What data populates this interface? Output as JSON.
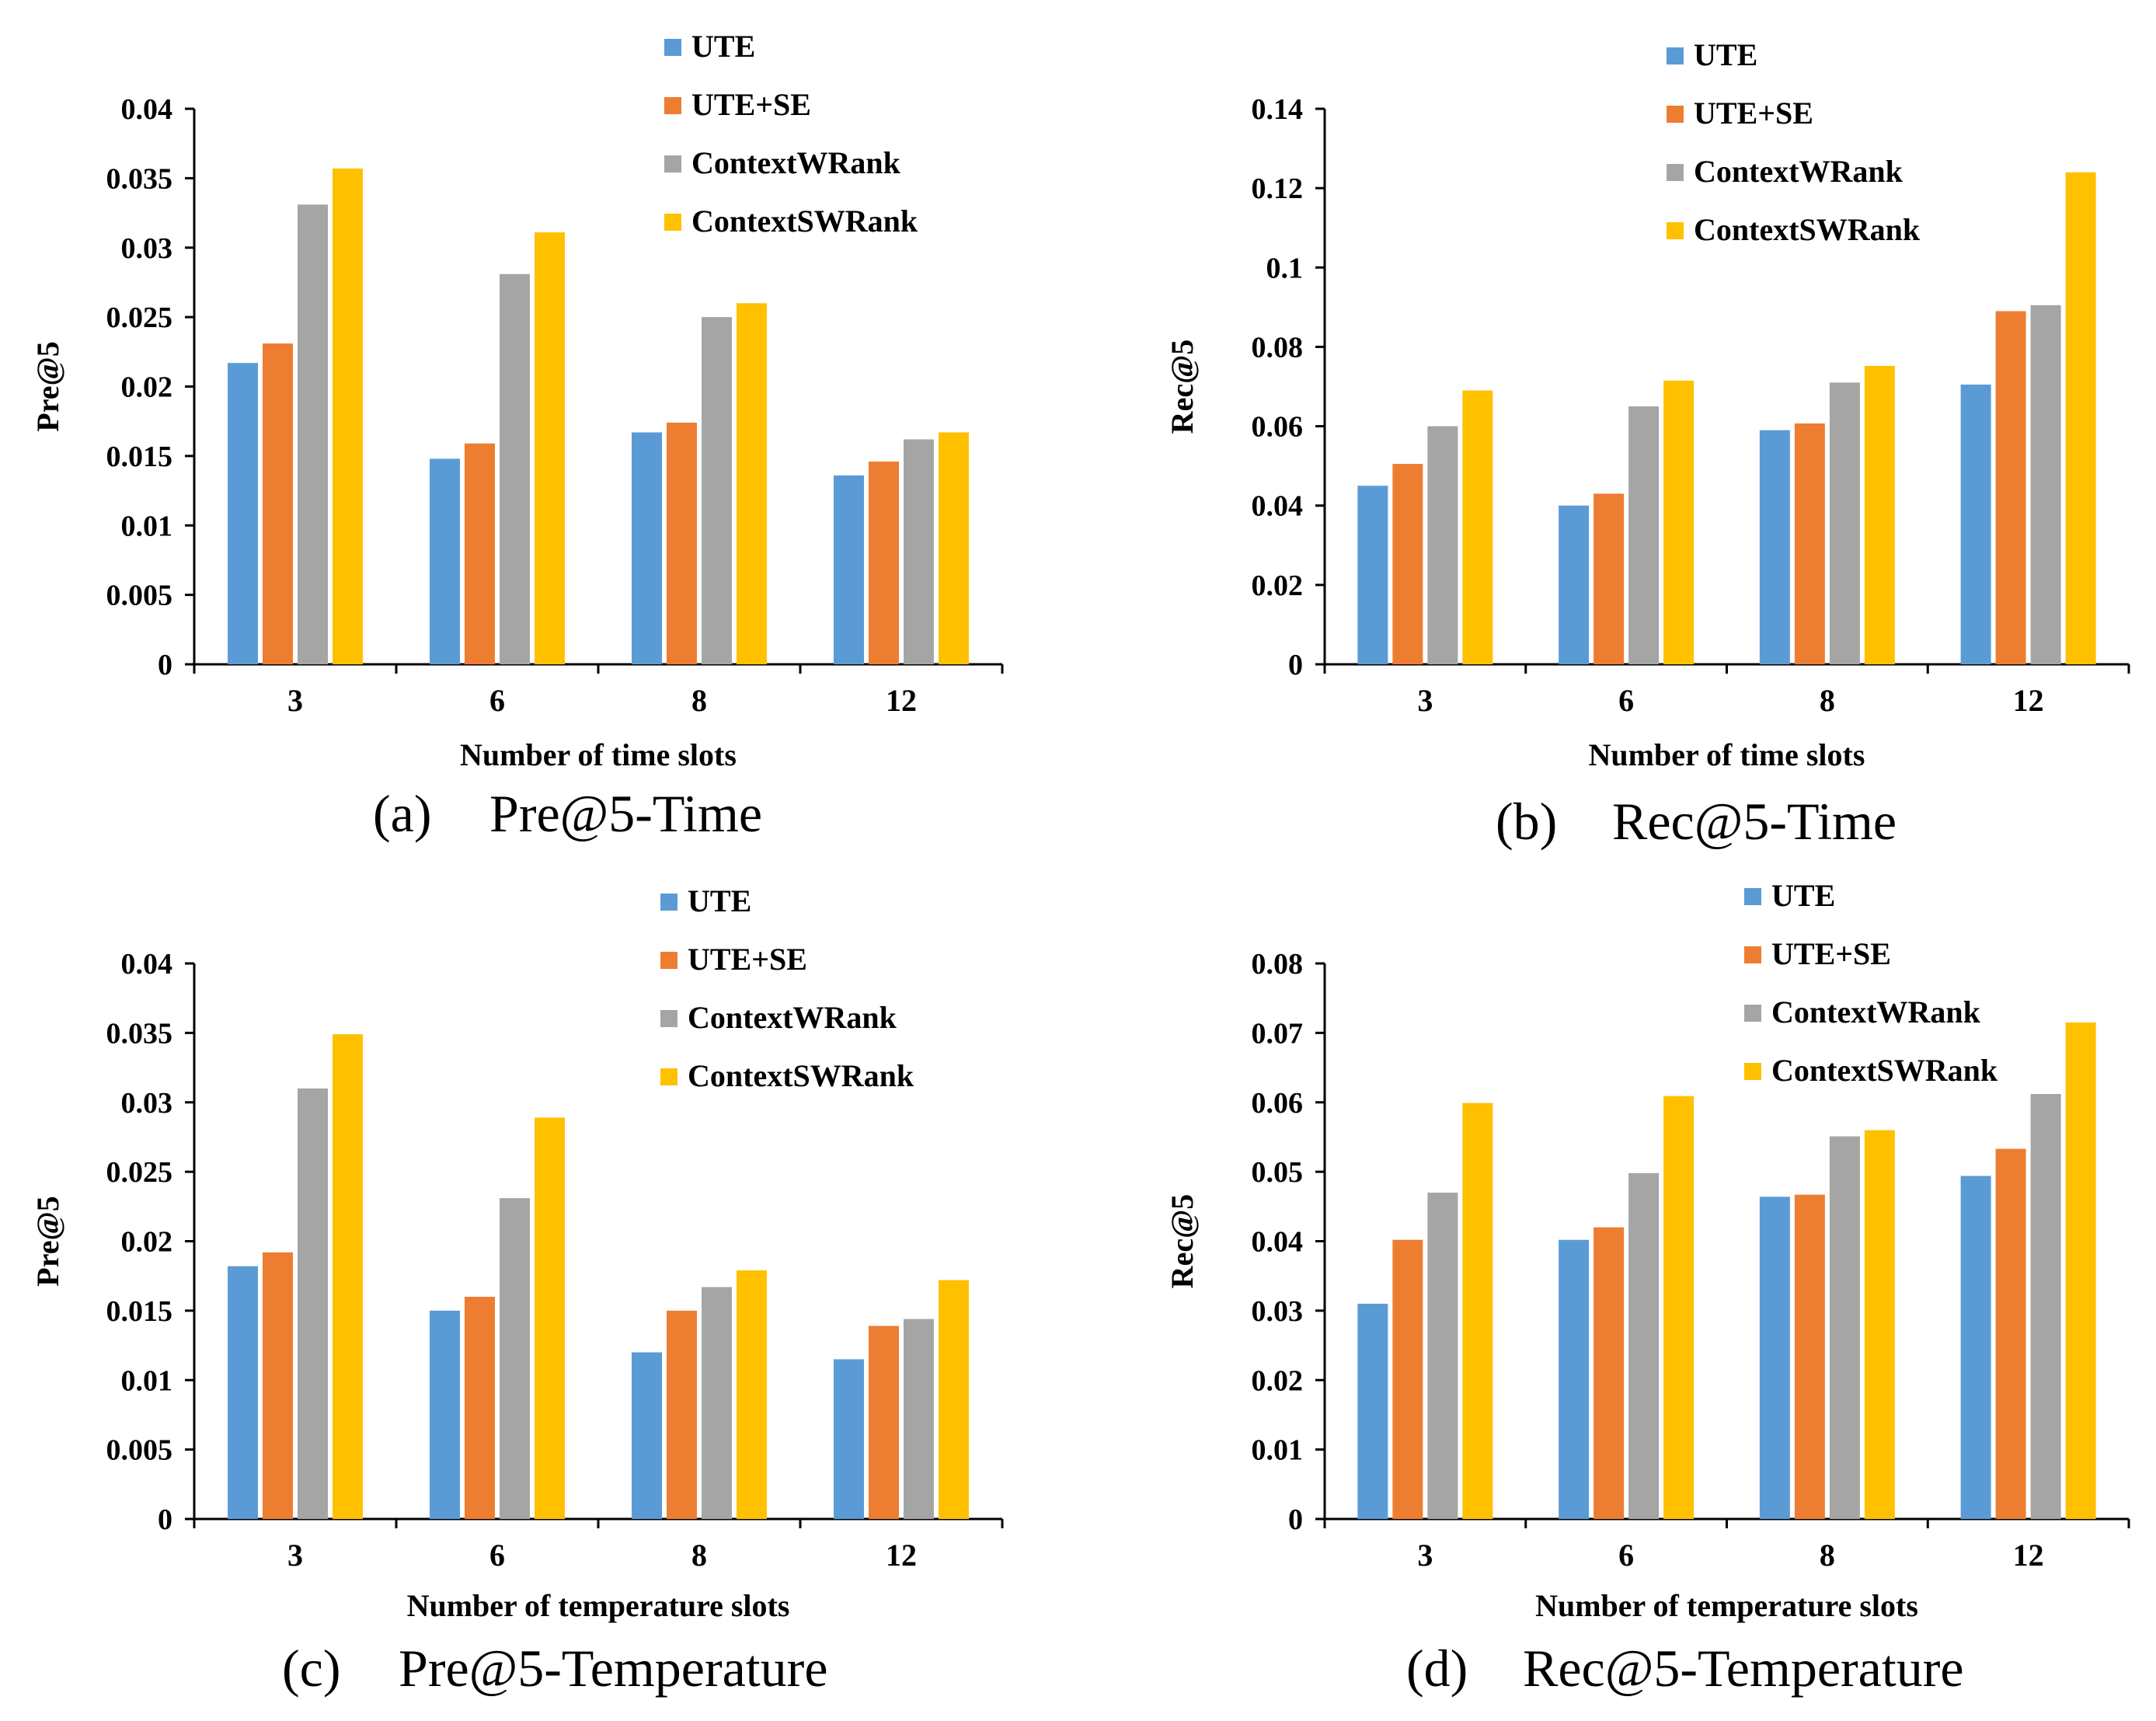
{
  "colors": {
    "UTE": "#5B9BD5",
    "UTE+SE": "#ED7D31",
    "ContextWRank": "#A5A5A5",
    "ContextSWRank": "#FFC000"
  },
  "chart_data": [
    {
      "type": "bar",
      "caption_letter": "(a)",
      "caption_title": "Pre@5-Time",
      "xlabel": "Number of time slots",
      "ylabel": "Pre@5",
      "categories": [
        "3",
        "6",
        "8",
        "12"
      ],
      "ylim": [
        0,
        0.04
      ],
      "yticks": [
        "0",
        "0.005",
        "0.01",
        "0.015",
        "0.02",
        "0.025",
        "0.03",
        "0.035",
        "0.04"
      ],
      "legend_position": "top-right",
      "series": [
        {
          "name": "UTE",
          "values": [
            0.0217,
            0.0148,
            0.0167,
            0.0136
          ]
        },
        {
          "name": "UTE+SE",
          "values": [
            0.0231,
            0.0159,
            0.0174,
            0.0146
          ]
        },
        {
          "name": "ContextWRank",
          "values": [
            0.0331,
            0.0281,
            0.025,
            0.0162
          ]
        },
        {
          "name": "ContextSWRank",
          "values": [
            0.0357,
            0.0311,
            0.026,
            0.0167
          ]
        }
      ]
    },
    {
      "type": "bar",
      "caption_letter": "(b)",
      "caption_title": "Rec@5-Time",
      "xlabel": "Number of time slots",
      "ylabel": "Rec@5",
      "categories": [
        "3",
        "6",
        "8",
        "12"
      ],
      "ylim": [
        0,
        0.14
      ],
      "yticks": [
        "0",
        "0.02",
        "0.04",
        "0.06",
        "0.08",
        "0.1",
        "0.12",
        "0.14"
      ],
      "legend_position": "top-right",
      "series": [
        {
          "name": "UTE",
          "values": [
            0.045,
            0.04,
            0.059,
            0.0705
          ]
        },
        {
          "name": "UTE+SE",
          "values": [
            0.0505,
            0.043,
            0.0607,
            0.089
          ]
        },
        {
          "name": "ContextWRank",
          "values": [
            0.06,
            0.065,
            0.071,
            0.0905
          ]
        },
        {
          "name": "ContextSWRank",
          "values": [
            0.069,
            0.0715,
            0.0752,
            0.124
          ]
        }
      ]
    },
    {
      "type": "bar",
      "caption_letter": "(c)",
      "caption_title": "Pre@5-Temperature",
      "xlabel": "Number of temperature slots",
      "ylabel": "Pre@5",
      "categories": [
        "3",
        "6",
        "8",
        "12"
      ],
      "ylim": [
        0,
        0.04
      ],
      "yticks": [
        "0",
        "0.005",
        "0.01",
        "0.015",
        "0.02",
        "0.025",
        "0.03",
        "0.035",
        "0.04"
      ],
      "legend_position": "top-right",
      "series": [
        {
          "name": "UTE",
          "values": [
            0.0182,
            0.015,
            0.012,
            0.0115
          ]
        },
        {
          "name": "UTE+SE",
          "values": [
            0.0192,
            0.016,
            0.015,
            0.0139
          ]
        },
        {
          "name": "ContextWRank",
          "values": [
            0.031,
            0.0231,
            0.0167,
            0.0144
          ]
        },
        {
          "name": "ContextSWRank",
          "values": [
            0.0349,
            0.0289,
            0.0179,
            0.0172
          ]
        }
      ]
    },
    {
      "type": "bar",
      "caption_letter": "(d)",
      "caption_title": "Rec@5-Temperature",
      "xlabel": "Number of temperature slots",
      "ylabel": "Rec@5",
      "categories": [
        "3",
        "6",
        "8",
        "12"
      ],
      "ylim": [
        0,
        0.08
      ],
      "yticks": [
        "0",
        "0.01",
        "0.02",
        "0.03",
        "0.04",
        "0.05",
        "0.06",
        "0.07",
        "0.08"
      ],
      "legend_position": "top-right",
      "series": [
        {
          "name": "UTE",
          "values": [
            0.031,
            0.0402,
            0.0464,
            0.0494
          ]
        },
        {
          "name": "UTE+SE",
          "values": [
            0.0402,
            0.042,
            0.0467,
            0.0533
          ]
        },
        {
          "name": "ContextWRank",
          "values": [
            0.047,
            0.0498,
            0.0551,
            0.0612
          ]
        },
        {
          "name": "ContextSWRank",
          "values": [
            0.0599,
            0.0609,
            0.056,
            0.0715
          ]
        }
      ]
    }
  ]
}
